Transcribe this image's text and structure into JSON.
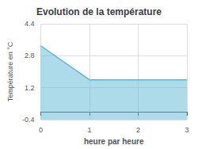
{
  "chart_data": {
    "type": "area",
    "title": "Evolution de la température",
    "xlabel": "heure par heure",
    "ylabel": "Température en °C",
    "x": [
      0,
      1,
      3
    ],
    "values": [
      3.3,
      1.6,
      1.6
    ],
    "color": "#5bb8d4",
    "xlim": [
      0,
      3
    ],
    "ylim": [
      -0.4,
      4.4
    ],
    "xticks": [
      0,
      1,
      2,
      3
    ],
    "yticks": [
      -0.4,
      1.2,
      2.8,
      4.4
    ],
    "grid": true
  }
}
